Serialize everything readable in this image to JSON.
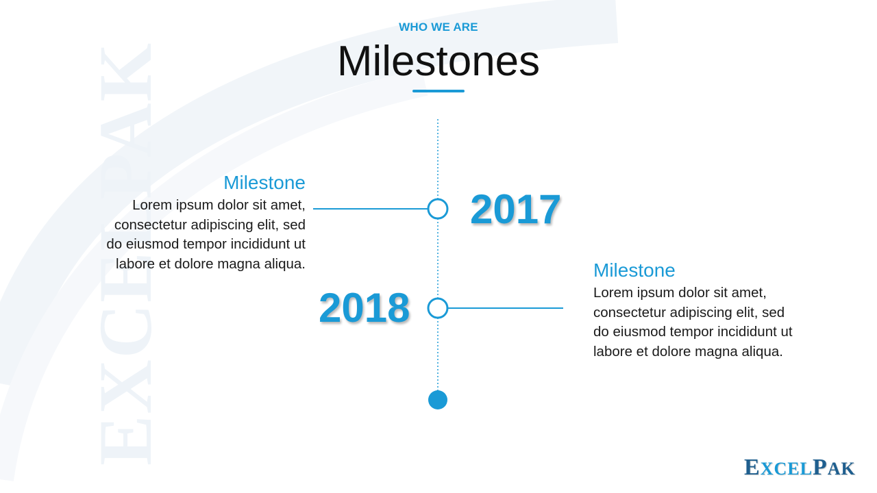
{
  "slide": {
    "eyebrow": "WHO WE ARE",
    "title": "Milestones",
    "watermark_text": "EXCELPAK"
  },
  "milestones": [
    {
      "year": "2017",
      "title": "Milestone",
      "body_lines": [
        "Lorem ipsum dolor sit amet,",
        "consectetur adipiscing elit, sed",
        "do eiusmod tempor incididunt ut",
        "labore et dolore magna aliqua."
      ]
    },
    {
      "year": "2018",
      "title": "Milestone",
      "body_lines": [
        "Lorem ipsum dolor sit amet,",
        "consectetur adipiscing elit, sed",
        "do eiusmod tempor incididunt ut",
        "labore et dolore magna aliqua."
      ]
    }
  ],
  "logo": {
    "text": "EXCELPAK",
    "parts": [
      "E",
      "XCEL",
      "P",
      "AK"
    ]
  },
  "colors": {
    "accent": "#1a9ad6",
    "title": "#111111",
    "body": "#1a1a1a",
    "logo": "#1f5f8f"
  }
}
